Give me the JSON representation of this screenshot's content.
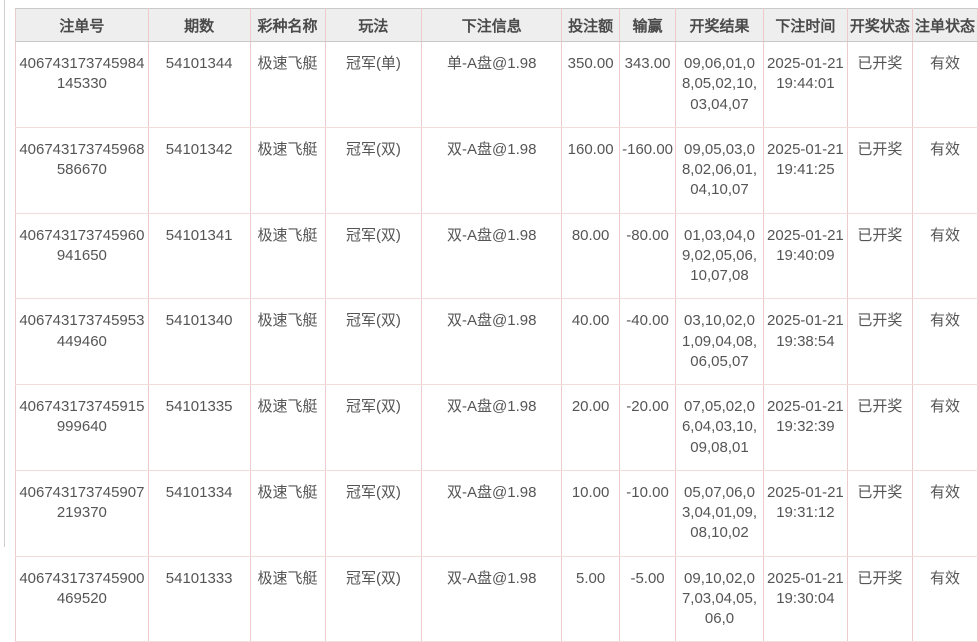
{
  "colors": {
    "header_bg": "#eeeeee",
    "header_text": "#4a4a4a",
    "body_text": "#555555",
    "border_vertical": "#eccacd",
    "border_horizontal": "#f2dbdb",
    "border_header": "#c9c9c9",
    "panel_edge": "#cfcfcf"
  },
  "table": {
    "columns": [
      {
        "key": "order_no",
        "label": "注单号"
      },
      {
        "key": "period",
        "label": "期数"
      },
      {
        "key": "lottery",
        "label": "彩种名称"
      },
      {
        "key": "play",
        "label": "玩法"
      },
      {
        "key": "bet_info",
        "label": "下注信息"
      },
      {
        "key": "amount",
        "label": "投注额"
      },
      {
        "key": "win_loss",
        "label": "输赢"
      },
      {
        "key": "result",
        "label": "开奖结果"
      },
      {
        "key": "bet_time",
        "label": "下注时间"
      },
      {
        "key": "draw_status",
        "label": "开奖状态"
      },
      {
        "key": "order_status",
        "label": "注单状态"
      }
    ],
    "rows": [
      {
        "order_no": "406743173745984145330",
        "period": "54101344",
        "lottery": "极速飞艇",
        "play": "冠军(单)",
        "bet_info": "单-A盘@1.98",
        "amount": "350.00",
        "win_loss": "343.00",
        "result": "09,06,01,08,05,02,10,03,04,07",
        "bet_time": "2025-01-21 19:44:01",
        "draw_status": "已开奖",
        "order_status": "有效"
      },
      {
        "order_no": "406743173745968586670",
        "period": "54101342",
        "lottery": "极速飞艇",
        "play": "冠军(双)",
        "bet_info": "双-A盘@1.98",
        "amount": "160.00",
        "win_loss": "-160.00",
        "result": "09,05,03,08,02,06,01,04,10,07",
        "bet_time": "2025-01-21 19:41:25",
        "draw_status": "已开奖",
        "order_status": "有效"
      },
      {
        "order_no": "406743173745960941650",
        "period": "54101341",
        "lottery": "极速飞艇",
        "play": "冠军(双)",
        "bet_info": "双-A盘@1.98",
        "amount": "80.00",
        "win_loss": "-80.00",
        "result": "01,03,04,09,02,05,06,10,07,08",
        "bet_time": "2025-01-21 19:40:09",
        "draw_status": "已开奖",
        "order_status": "有效"
      },
      {
        "order_no": "406743173745953449460",
        "period": "54101340",
        "lottery": "极速飞艇",
        "play": "冠军(双)",
        "bet_info": "双-A盘@1.98",
        "amount": "40.00",
        "win_loss": "-40.00",
        "result": "03,10,02,01,09,04,08,06,05,07",
        "bet_time": "2025-01-21 19:38:54",
        "draw_status": "已开奖",
        "order_status": "有效"
      },
      {
        "order_no": "406743173745915999640",
        "period": "54101335",
        "lottery": "极速飞艇",
        "play": "冠军(双)",
        "bet_info": "双-A盘@1.98",
        "amount": "20.00",
        "win_loss": "-20.00",
        "result": "07,05,02,06,04,03,10,09,08,01",
        "bet_time": "2025-01-21 19:32:39",
        "draw_status": "已开奖",
        "order_status": "有效"
      },
      {
        "order_no": "406743173745907219370",
        "period": "54101334",
        "lottery": "极速飞艇",
        "play": "冠军(双)",
        "bet_info": "双-A盘@1.98",
        "amount": "10.00",
        "win_loss": "-10.00",
        "result": "05,07,06,03,04,01,09,08,10,02",
        "bet_time": "2025-01-21 19:31:12",
        "draw_status": "已开奖",
        "order_status": "有效"
      },
      {
        "order_no": "406743173745900469520",
        "period": "54101333",
        "lottery": "极速飞艇",
        "play": "冠军(双)",
        "bet_info": "双-A盘@1.98",
        "amount": "5.00",
        "win_loss": "-5.00",
        "result": "09,10,02,07,03,04,05,06,0",
        "bet_time": "2025-01-21 19:30:04",
        "draw_status": "已开奖",
        "order_status": "有效"
      }
    ]
  }
}
